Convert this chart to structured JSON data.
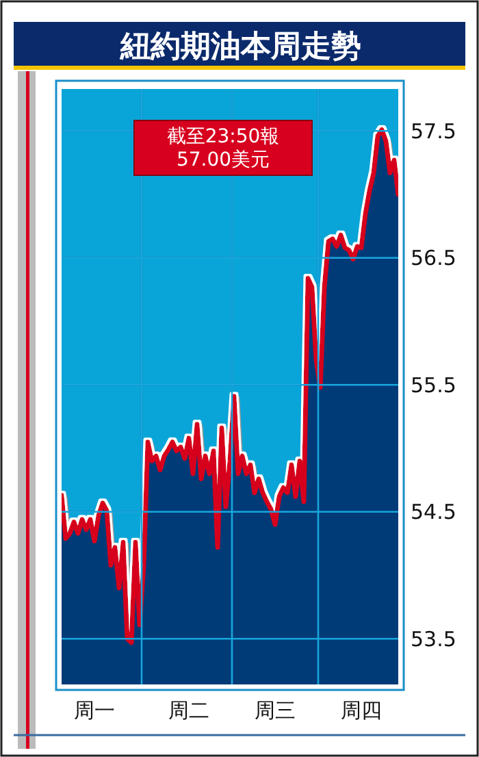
{
  "chart_data": {
    "type": "area",
    "title": "紐約期油本周走勢",
    "annotations": [
      "截至23:50報",
      "57.00美元"
    ],
    "categories": [
      null,
      null,
      null,
      null,
      null,
      null,
      null,
      null,
      "周一",
      null,
      null,
      null,
      null,
      null,
      null,
      null,
      null,
      null,
      null,
      null,
      null,
      null,
      null,
      null,
      null,
      null,
      null,
      null,
      null,
      null,
      null,
      "周二",
      null,
      null,
      null,
      null,
      null,
      null,
      null,
      null,
      null,
      null,
      null,
      null,
      null,
      null,
      null,
      null,
      null,
      null,
      null,
      null,
      "周三",
      null,
      null,
      null,
      null,
      null,
      null,
      null,
      null,
      null,
      null,
      null,
      null,
      null,
      null,
      null,
      null,
      null,
      null,
      null,
      null,
      "周四",
      null,
      null,
      null,
      null,
      null,
      null,
      null,
      null,
      null
    ],
    "series": [
      {
        "color": "#d7001e",
        "values": [
          54.63,
          54.29,
          54.33,
          54.42,
          54.33,
          54.44,
          54.36,
          54.44,
          54.27,
          54.47,
          54.57,
          54.51,
          54.08,
          54.22,
          53.9,
          54.26,
          53.5,
          53.47,
          54.26,
          53.61,
          54.08,
          55.05,
          54.9,
          54.94,
          54.83,
          54.94,
          54.99,
          55.05,
          54.98,
          55.01,
          54.92,
          55.08,
          54.8,
          55.19,
          54.76,
          54.94,
          54.8,
          54.98,
          54.22,
          55.16,
          54.54,
          54.9,
          55.41,
          54.8,
          54.94,
          54.8,
          54.87,
          54.65,
          54.76,
          54.65,
          54.58,
          54.52,
          54.4,
          54.62,
          54.69,
          54.65,
          54.87,
          54.62,
          54.9,
          54.58,
          56.34,
          56.27,
          55.7,
          55.48,
          56.27,
          56.63,
          56.65,
          56.59,
          56.68,
          56.58,
          56.56,
          56.49,
          56.59,
          56.58,
          56.85,
          57.03,
          57.17,
          57.46,
          57.51,
          57.42,
          57.17,
          57.27,
          57.0
        ]
      }
    ],
    "ylim": [
      53.14,
      57.83
    ],
    "yticks": [
      53.5,
      54.5,
      55.5,
      56.5,
      57.5
    ],
    "grid": true
  }
}
